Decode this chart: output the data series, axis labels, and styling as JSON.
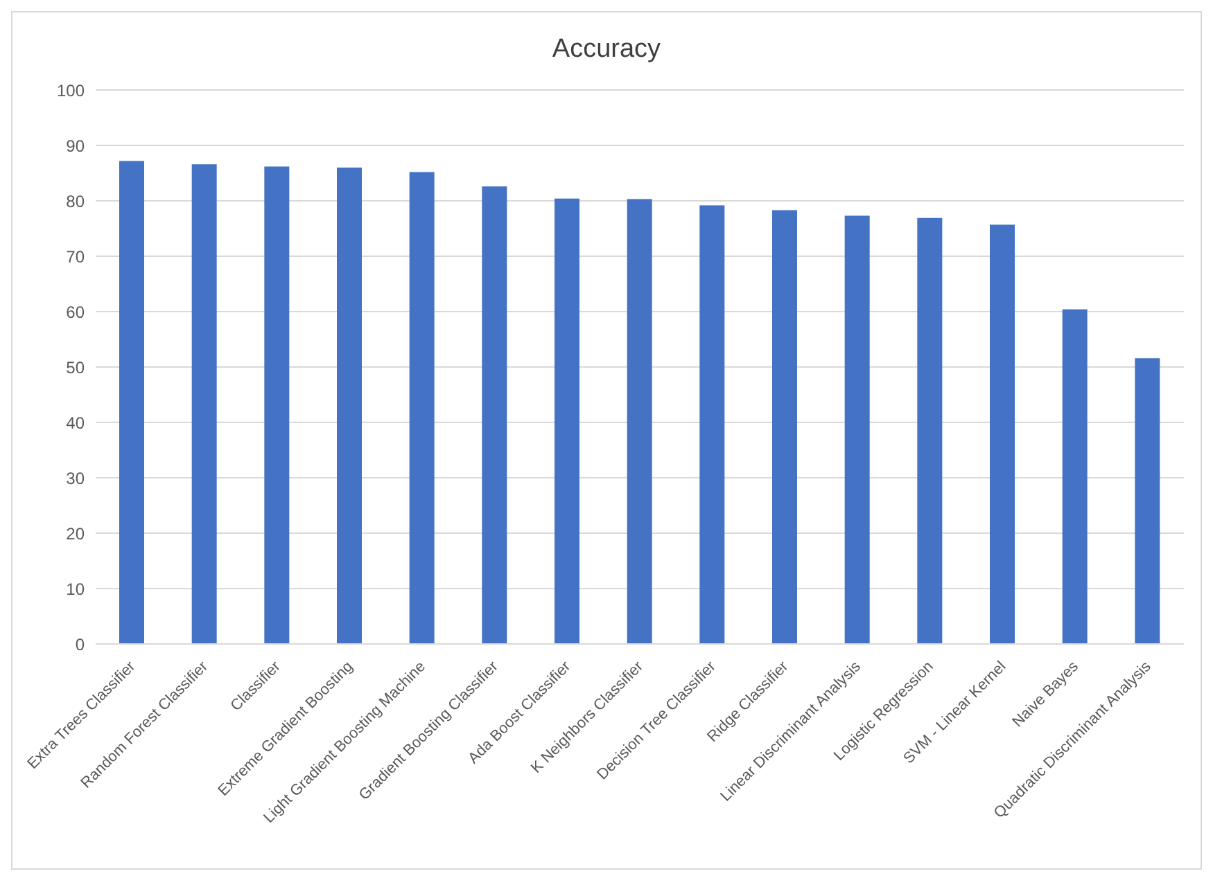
{
  "chart_data": {
    "type": "bar",
    "title": "Accuracy",
    "categories": [
      "Extra Trees Classifier",
      "Random Forest Classifier",
      "Classifier",
      "Extreme Gradient Boosting",
      "Light Gradient Boosting Machine",
      "Gradient Boosting Classifier",
      "Ada Boost Classifier",
      "K Neighbors Classifier",
      "Decision Tree Classifier",
      "Ridge Classifier",
      "Linear Discriminant Analysis",
      "Logistic Regression",
      "SVM - Linear Kernel",
      "Naive Bayes",
      "Quadratic Discriminant Analysis"
    ],
    "values": [
      87.2,
      86.6,
      86.2,
      86.0,
      85.2,
      82.6,
      80.4,
      80.3,
      79.2,
      78.3,
      77.3,
      76.9,
      75.7,
      60.4,
      51.6
    ],
    "color": "#4472c4",
    "ylim": [
      0,
      100
    ],
    "yticks": [
      0,
      10,
      20,
      30,
      40,
      50,
      60,
      70,
      80,
      90,
      100
    ],
    "grid": "y",
    "legend": false
  }
}
